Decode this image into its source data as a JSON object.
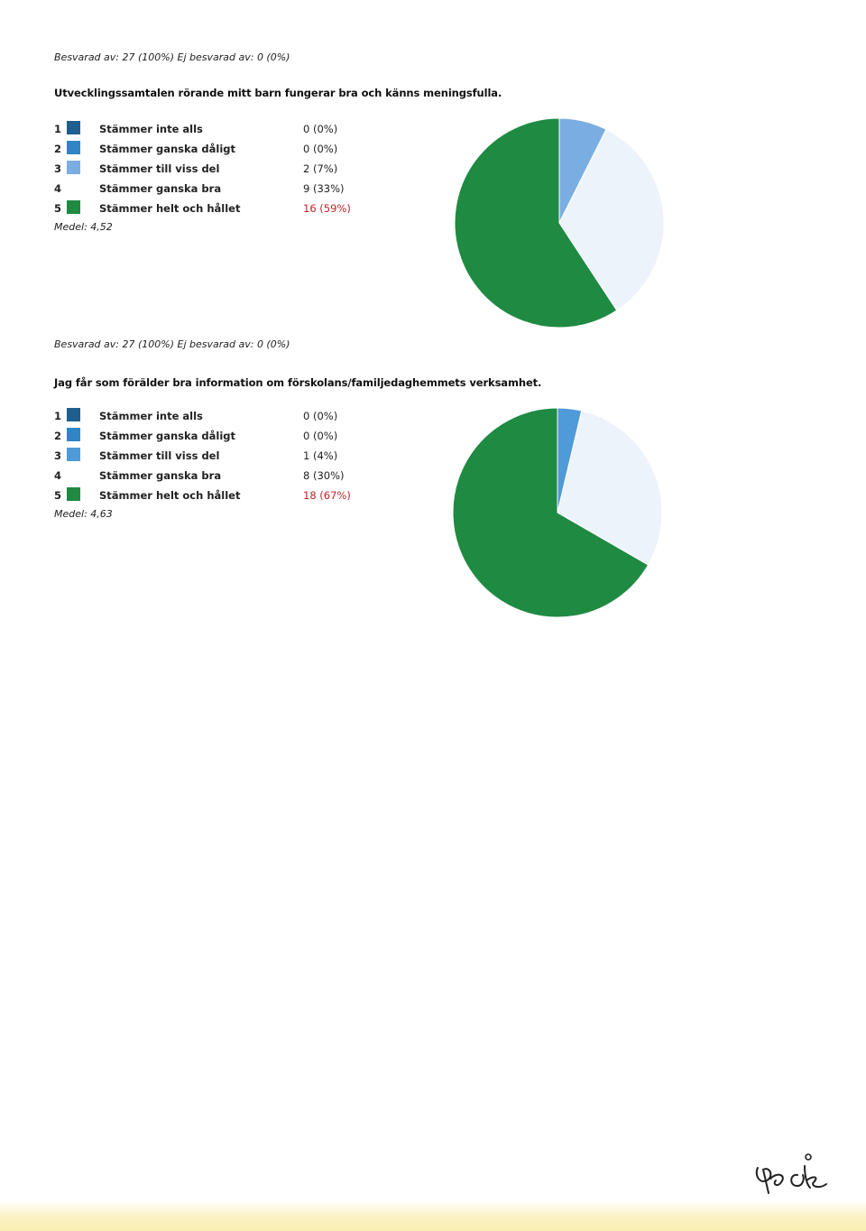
{
  "chart_data": [
    {
      "type": "pie",
      "meta": "Besvarad av: 27 (100%) Ej besvarad av: 0 (0%)",
      "title": "Utvecklingssamtalen rörande mitt barn fungerar bra och känns meningsfulla.",
      "mean_label": "Medel: 4,52",
      "categories": [
        {
          "num": "1",
          "label": "Stämmer inte alls",
          "value": 0,
          "display": "0 (0%)",
          "color": "#1f5f8f"
        },
        {
          "num": "2",
          "label": "Stämmer ganska dåligt",
          "value": 0,
          "display": "0 (0%)",
          "color": "#2f86c6"
        },
        {
          "num": "3",
          "label": "Stämmer till viss del",
          "value": 2,
          "display": "2 (7%)",
          "color": "#7aaee2"
        },
        {
          "num": "4",
          "label": "Stämmer ganska bra",
          "value": 9,
          "display": "9 (33%)",
          "color": "#edf3fb"
        },
        {
          "num": "5",
          "label": "Stämmer helt och hållet",
          "value": 16,
          "display": "16 (59%)",
          "color": "#1f8a42",
          "highlight": true
        }
      ]
    },
    {
      "type": "pie",
      "meta": "Besvarad av: 27 (100%) Ej besvarad av: 0 (0%)",
      "title": "Jag får som förälder bra information om förskolans/familjedaghemmets verksamhet.",
      "mean_label": "Medel: 4,63",
      "categories": [
        {
          "num": "1",
          "label": "Stämmer inte alls",
          "value": 0,
          "display": "0 (0%)",
          "color": "#1f5f8f"
        },
        {
          "num": "2",
          "label": "Stämmer ganska dåligt",
          "value": 0,
          "display": "0 (0%)",
          "color": "#2f86c6"
        },
        {
          "num": "3",
          "label": "Stämmer till viss del",
          "value": 1,
          "display": "1 (4%)",
          "color": "#4f9ad8"
        },
        {
          "num": "4",
          "label": "Stämmer ganska bra",
          "value": 8,
          "display": "8 (30%)",
          "color": "#edf3fb"
        },
        {
          "num": "5",
          "label": "Stämmer helt och hållet",
          "value": 18,
          "display": "18 (67%)",
          "color": "#1f8a42",
          "highlight": true
        }
      ]
    }
  ]
}
